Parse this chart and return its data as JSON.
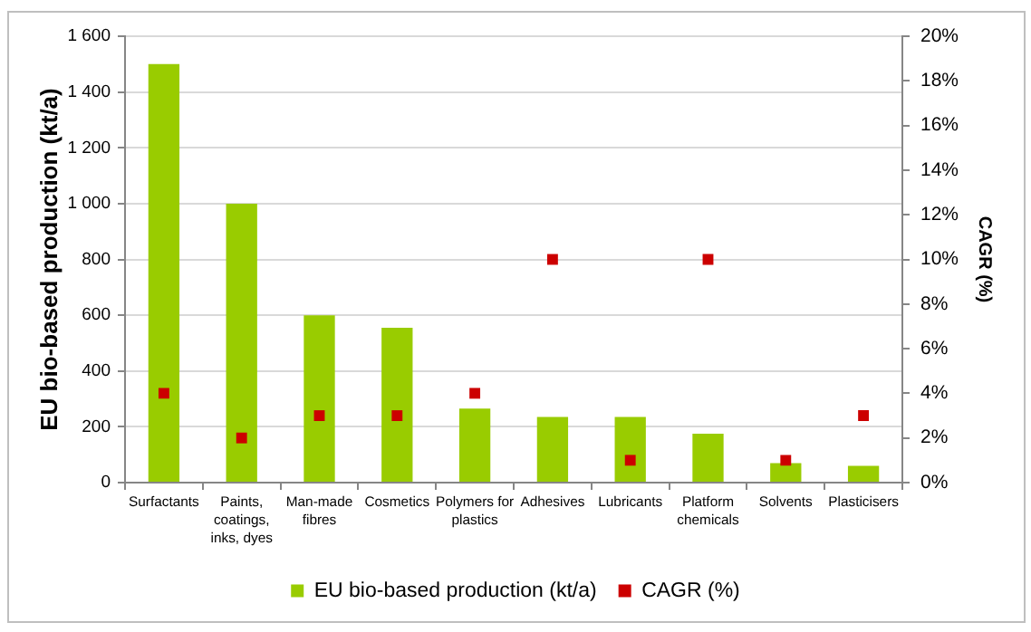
{
  "chart_data": {
    "type": "bar",
    "categories": [
      "Surfactants",
      "Paints, coatings, inks, dyes",
      "Man-made fibres",
      "Cosmetics",
      "Polymers for plastics",
      "Adhesives",
      "Lubricants",
      "Platform chemicals",
      "Solvents",
      "Plasticisers"
    ],
    "series": [
      {
        "name": "EU bio-based production (kt/a)",
        "color": "#99cc00",
        "values": [
          1500,
          1000,
          600,
          555,
          265,
          235,
          235,
          175,
          70,
          60
        ]
      },
      {
        "name": "CAGR (%)",
        "type": "scatter",
        "axis": "y2",
        "color": "#cc0000",
        "values": [
          4,
          2,
          3,
          3,
          4,
          10,
          1,
          10,
          1,
          3
        ]
      }
    ],
    "ylabel": "EU bio-based production (kt/a)",
    "y2label": "CAGR (%)",
    "ylim": [
      0,
      1600
    ],
    "yticks": [
      0,
      200,
      400,
      600,
      800,
      {
        "value": 1000,
        "label": "1 000"
      },
      {
        "value": 1200,
        "label": "1 200"
      },
      {
        "value": 1400,
        "label": "1 400"
      },
      {
        "value": 1600,
        "label": "1 600"
      }
    ],
    "y2lim": [
      0,
      20
    ],
    "y2ticks": [
      {
        "value": 0,
        "label": "0%"
      },
      {
        "value": 2,
        "label": "2%"
      },
      {
        "value": 4,
        "label": "4%"
      },
      {
        "value": 6,
        "label": "6%"
      },
      {
        "value": 8,
        "label": "8%"
      },
      {
        "value": 10,
        "label": "10%"
      },
      {
        "value": 12,
        "label": "12%"
      },
      {
        "value": 14,
        "label": "14%"
      },
      {
        "value": 16,
        "label": "16%"
      },
      {
        "value": 18,
        "label": "18%"
      },
      {
        "value": 20,
        "label": "20%"
      }
    ],
    "grid": "y",
    "legend": "bottom",
    "marker": "square"
  }
}
